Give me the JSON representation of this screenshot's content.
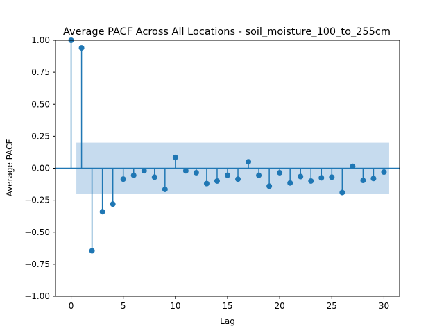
{
  "chart_data": {
    "type": "scatter",
    "title": "Average PACF Across All Locations - soil_moisture_100_to_255cm",
    "xlabel": "Lag",
    "ylabel": "Average PACF",
    "xlim": [
      -1.5,
      31.5
    ],
    "ylim": [
      -1.0,
      1.0
    ],
    "xticks": [
      0,
      5,
      10,
      15,
      20,
      25,
      30
    ],
    "yticks": [
      -1.0,
      -0.75,
      -0.5,
      -0.25,
      0.0,
      0.25,
      0.5,
      0.75,
      1.0
    ],
    "ytick_labels": [
      "−1.00",
      "−0.75",
      "−0.50",
      "−0.25",
      "0.00",
      "0.25",
      "0.50",
      "0.75",
      "1.00"
    ],
    "xtick_labels": [
      "0",
      "5",
      "10",
      "15",
      "20",
      "25",
      "30"
    ],
    "confidence_band": {
      "x_range": [
        0.5,
        30.5
      ],
      "lower": -0.2,
      "upper": 0.2,
      "color": "#c6dbee"
    },
    "series_color": "#1f77b4",
    "grid": false,
    "lags": [
      0,
      1,
      2,
      3,
      4,
      5,
      6,
      7,
      8,
      9,
      10,
      11,
      12,
      13,
      14,
      15,
      16,
      17,
      18,
      19,
      20,
      21,
      22,
      23,
      24,
      25,
      26,
      27,
      28,
      29,
      30
    ],
    "values": [
      1.0,
      0.94,
      -0.645,
      -0.34,
      -0.28,
      -0.085,
      -0.055,
      -0.02,
      -0.07,
      -0.165,
      0.085,
      -0.02,
      -0.035,
      -0.12,
      -0.1,
      -0.055,
      -0.085,
      0.05,
      -0.055,
      -0.14,
      -0.035,
      -0.115,
      -0.065,
      -0.1,
      -0.075,
      -0.07,
      -0.19,
      0.015,
      -0.095,
      -0.08,
      -0.03
    ]
  }
}
